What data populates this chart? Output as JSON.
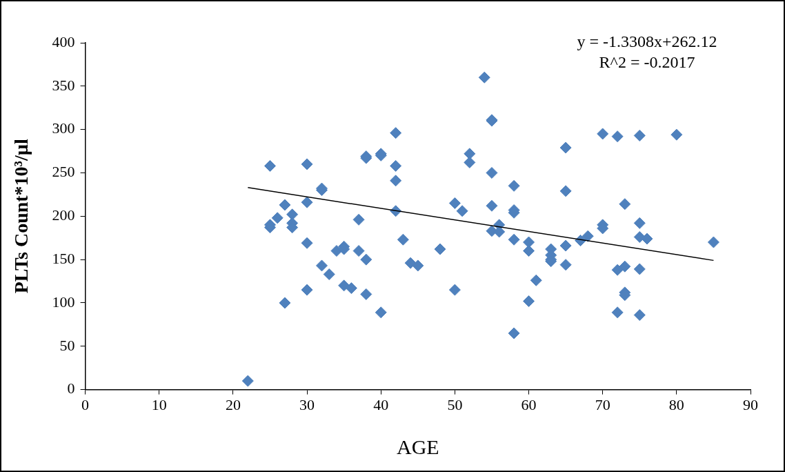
{
  "chart_data": {
    "type": "scatter",
    "xlabel": "AGE",
    "ylabel": "PLTs Count*10³/µl",
    "annotations": [
      "y = -1.3308x+262.12",
      "R^2 = -0.2017"
    ],
    "xlim": [
      0,
      90
    ],
    "xticks": [
      0,
      10,
      20,
      30,
      40,
      50,
      60,
      70,
      80,
      90
    ],
    "ylim": [
      0,
      400
    ],
    "yticks": [
      0,
      50,
      100,
      150,
      200,
      250,
      300,
      350,
      400
    ],
    "grid": false,
    "legend": false,
    "marker": "diamond",
    "series": [
      {
        "type": "scatter",
        "color": "#4f81bd",
        "x": [
          22,
          25,
          25,
          25,
          26,
          27,
          27,
          28,
          28,
          28,
          30,
          30,
          30,
          30,
          32,
          32,
          32,
          33,
          34,
          35,
          35,
          35,
          36,
          37,
          37,
          38,
          38,
          38,
          38,
          40,
          40,
          40,
          42,
          42,
          42,
          42,
          43,
          44,
          45,
          48,
          50,
          50,
          51,
          52,
          52,
          54,
          55,
          55,
          55,
          55,
          55,
          56,
          56,
          58,
          58,
          58,
          58,
          58,
          60,
          60,
          60,
          61,
          63,
          63,
          63,
          63,
          65,
          65,
          65,
          65,
          67,
          68,
          70,
          70,
          70,
          72,
          72,
          72,
          73,
          73,
          73,
          73,
          75,
          75,
          75,
          75,
          75,
          76,
          80,
          85
        ],
        "values": [
          10,
          258,
          187,
          190,
          198,
          213,
          100,
          202,
          192,
          187,
          260,
          216,
          169,
          115,
          232,
          230,
          143,
          133,
          160,
          165,
          162,
          120,
          117,
          196,
          160,
          269,
          267,
          150,
          110,
          272,
          270,
          89,
          296,
          258,
          241,
          206,
          173,
          146,
          143,
          162,
          215,
          115,
          206,
          272,
          262,
          360,
          310,
          311,
          250,
          212,
          183,
          190,
          182,
          235,
          207,
          204,
          173,
          65,
          170,
          160,
          102,
          126,
          162,
          155,
          150,
          148,
          279,
          229,
          166,
          144,
          172,
          177,
          295,
          190,
          186,
          292,
          138,
          89,
          214,
          142,
          112,
          109,
          293,
          192,
          176,
          139,
          86,
          174,
          294,
          170
        ]
      },
      {
        "type": "line",
        "color": "#000000",
        "marker": "none",
        "x": [
          22,
          85
        ],
        "values": [
          233,
          149
        ]
      }
    ]
  }
}
